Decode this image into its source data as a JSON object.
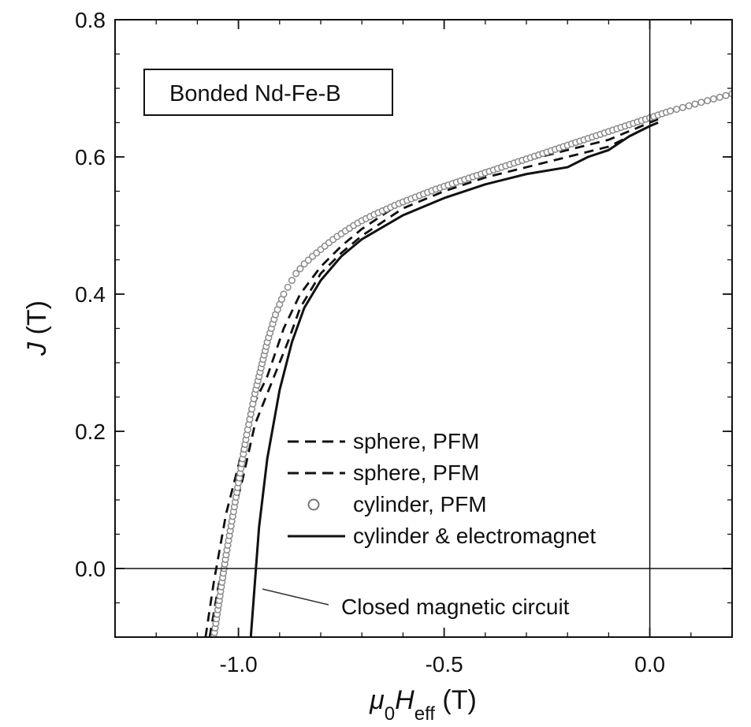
{
  "chart_data": {
    "type": "line",
    "title": "",
    "inset_label": "Bonded Nd-Fe-B",
    "xlabel": {
      "prefix": "μ",
      "prefix_sub": "0",
      "main": "H",
      "main_sub": "eff",
      "suffix": " (T)"
    },
    "ylabel": {
      "main": "J",
      "suffix": " (T)"
    },
    "xlim": [
      -1.3,
      0.2
    ],
    "ylim": [
      -0.1,
      0.8
    ],
    "xticks": [
      -1.0,
      -0.5,
      0.0
    ],
    "xtick_labels": [
      "-1.0",
      "-0.5",
      "0.0"
    ],
    "yticks": [
      0.0,
      0.2,
      0.4,
      0.6,
      0.8
    ],
    "ytick_labels": [
      "0.0",
      "0.2",
      "0.4",
      "0.6",
      "0.8"
    ],
    "x_minor_step": 0.1,
    "y_minor_step": 0.05,
    "grid": false,
    "reference_lines": [
      {
        "axis": "x",
        "value": 0.0
      },
      {
        "axis": "y",
        "value": 0.0
      }
    ],
    "legend_position": "lower-right",
    "annotations": [
      {
        "text": "Closed magnetic circuit",
        "points_to": {
          "x": -0.95,
          "y": -0.03
        }
      }
    ],
    "series": [
      {
        "name": "sphere, PFM",
        "style": "dashed",
        "color": "#111111",
        "x": [
          -1.08,
          -1.06,
          -1.03,
          -1.0,
          -0.97,
          -0.93,
          -0.89,
          -0.85,
          -0.8,
          -0.75,
          -0.7,
          -0.6,
          -0.5,
          -0.4,
          -0.3,
          -0.2,
          -0.1,
          0.0,
          0.02
        ],
        "y": [
          -0.1,
          -0.02,
          0.08,
          0.15,
          0.23,
          0.28,
          0.35,
          0.4,
          0.44,
          0.47,
          0.495,
          0.535,
          0.56,
          0.58,
          0.595,
          0.61,
          0.625,
          0.65,
          0.655
        ]
      },
      {
        "name": "sphere, PFM",
        "style": "dashed",
        "color": "#111111",
        "x": [
          -1.07,
          -1.05,
          -1.02,
          -0.99,
          -0.96,
          -0.92,
          -0.88,
          -0.85,
          -0.8,
          -0.75,
          -0.7,
          -0.6,
          -0.5,
          -0.4,
          -0.3,
          -0.2,
          -0.1,
          0.0,
          0.02
        ],
        "y": [
          -0.1,
          -0.03,
          0.06,
          0.13,
          0.21,
          0.27,
          0.33,
          0.38,
          0.43,
          0.46,
          0.485,
          0.525,
          0.55,
          0.57,
          0.585,
          0.6,
          0.615,
          0.645,
          0.65
        ]
      },
      {
        "name": "cylinder, PFM",
        "style": "circles",
        "color": "#8a8a8a",
        "x": [
          -1.06,
          -1.05,
          -1.04,
          -1.03,
          -1.02,
          -1.01,
          -1.0,
          -0.99,
          -0.98,
          -0.97,
          -0.96,
          -0.95,
          -0.94,
          -0.93,
          -0.92,
          -0.91,
          -0.9,
          -0.89,
          -0.88,
          -0.87,
          -0.86,
          -0.85,
          -0.84,
          -0.82,
          -0.8,
          -0.78,
          -0.76,
          -0.74,
          -0.72,
          -0.7,
          -0.67,
          -0.64,
          -0.61,
          -0.58,
          -0.55,
          -0.52,
          -0.49,
          -0.46,
          -0.43,
          -0.4,
          -0.37,
          -0.34,
          -0.31,
          -0.28,
          -0.25,
          -0.22,
          -0.19,
          -0.16,
          -0.13,
          -0.1,
          -0.07,
          -0.04,
          -0.01,
          0.02,
          0.05,
          0.08,
          0.11,
          0.14,
          0.17,
          0.2
        ],
        "y": [
          -0.1,
          -0.06,
          -0.02,
          0.02,
          0.055,
          0.09,
          0.125,
          0.16,
          0.195,
          0.225,
          0.255,
          0.28,
          0.305,
          0.33,
          0.35,
          0.37,
          0.385,
          0.4,
          0.41,
          0.42,
          0.43,
          0.437,
          0.444,
          0.455,
          0.465,
          0.475,
          0.484,
          0.492,
          0.5,
          0.507,
          0.516,
          0.524,
          0.532,
          0.539,
          0.546,
          0.553,
          0.559,
          0.565,
          0.571,
          0.577,
          0.583,
          0.589,
          0.595,
          0.601,
          0.607,
          0.613,
          0.619,
          0.625,
          0.631,
          0.637,
          0.643,
          0.649,
          0.655,
          0.661,
          0.667,
          0.672,
          0.677,
          0.682,
          0.687,
          0.692
        ]
      },
      {
        "name": "cylinder & electromagnet",
        "style": "solid",
        "color": "#111111",
        "x": [
          -0.97,
          -0.96,
          -0.95,
          -0.93,
          -0.9,
          -0.87,
          -0.84,
          -0.8,
          -0.75,
          -0.7,
          -0.6,
          -0.5,
          -0.4,
          -0.3,
          -0.2,
          -0.15,
          -0.1,
          -0.05,
          0.0,
          0.02
        ],
        "y": [
          -0.1,
          -0.02,
          0.06,
          0.16,
          0.26,
          0.33,
          0.38,
          0.42,
          0.455,
          0.48,
          0.515,
          0.54,
          0.56,
          0.575,
          0.585,
          0.6,
          0.61,
          0.63,
          0.645,
          0.65
        ]
      }
    ]
  }
}
